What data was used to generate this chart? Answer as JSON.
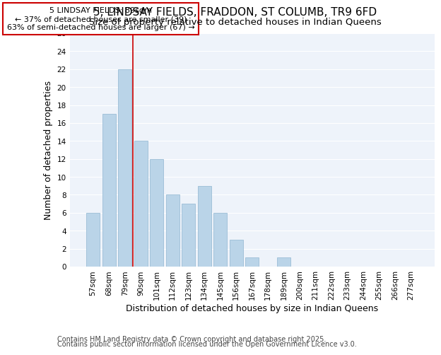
{
  "title": "5, LINDSAY FIELDS, FRADDON, ST COLUMB, TR9 6FD",
  "subtitle": "Size of property relative to detached houses in Indian Queens",
  "xlabel": "Distribution of detached houses by size in Indian Queens",
  "ylabel": "Number of detached properties",
  "bar_labels": [
    "57sqm",
    "68sqm",
    "79sqm",
    "90sqm",
    "101sqm",
    "112sqm",
    "123sqm",
    "134sqm",
    "145sqm",
    "156sqm",
    "167sqm",
    "178sqm",
    "189sqm",
    "200sqm",
    "211sqm",
    "222sqm",
    "233sqm",
    "244sqm",
    "255sqm",
    "266sqm",
    "277sqm"
  ],
  "bar_values": [
    6,
    17,
    22,
    14,
    12,
    8,
    7,
    9,
    6,
    3,
    1,
    0,
    1,
    0,
    0,
    0,
    0,
    0,
    0,
    0,
    0
  ],
  "bar_color": "#bad4e8",
  "bar_edge_color": "#9bbdd6",
  "vline_index": 2.5,
  "ylim": [
    0,
    26
  ],
  "yticks": [
    0,
    2,
    4,
    6,
    8,
    10,
    12,
    14,
    16,
    18,
    20,
    22,
    24,
    26
  ],
  "annotation_title": "5 LINDSAY FIELDS: 89sqm",
  "annotation_line1": "← 37% of detached houses are smaller (39)",
  "annotation_line2": "63% of semi-detached houses are larger (67) →",
  "annotation_box_facecolor": "#ffffff",
  "annotation_border_color": "#cc0000",
  "vline_color": "#cc0000",
  "footer1": "Contains HM Land Registry data © Crown copyright and database right 2025.",
  "footer2": "Contains public sector information licensed under the Open Government Licence v3.0.",
  "fig_facecolor": "#ffffff",
  "plot_facecolor": "#eef3fa",
  "grid_color": "#ffffff",
  "title_fontsize": 11,
  "subtitle_fontsize": 9.5,
  "axis_label_fontsize": 9,
  "tick_fontsize": 7.5,
  "annotation_fontsize": 8,
  "footer_fontsize": 7
}
